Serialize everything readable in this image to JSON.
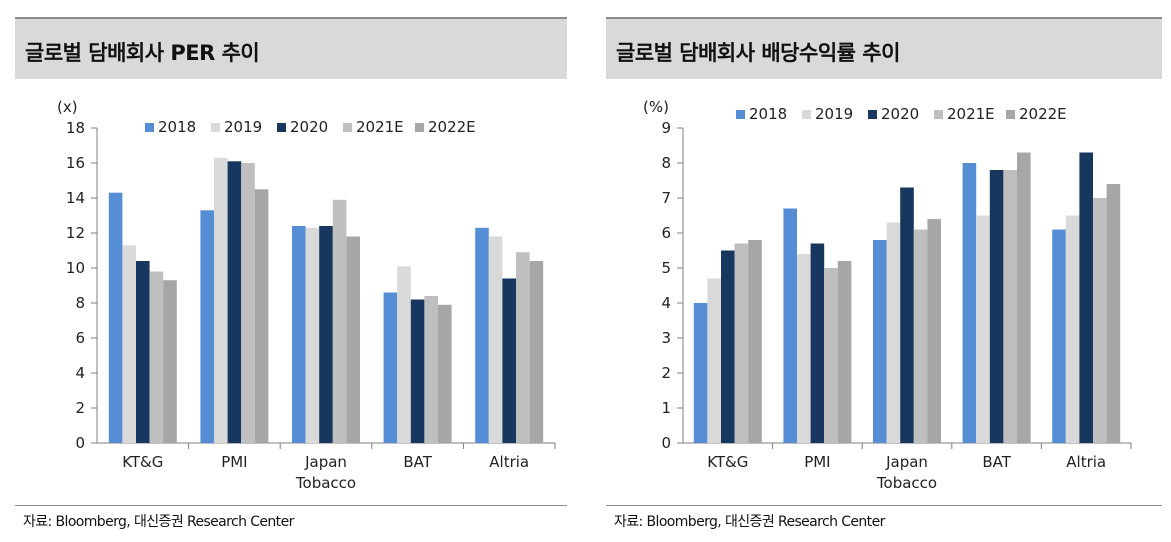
{
  "chart_data": [
    {
      "type": "bar",
      "title": "글로벌 담배회사 PER 추이",
      "unit_label": "(x)",
      "categories": [
        [
          "KT&G"
        ],
        [
          "PMI"
        ],
        [
          "Japan",
          "Tobacco"
        ],
        [
          "BAT"
        ],
        [
          "Altria"
        ]
      ],
      "series": [
        {
          "name": "2018",
          "color": "#558ed5",
          "values": [
            14.3,
            13.3,
            12.4,
            8.6,
            12.3
          ]
        },
        {
          "name": "2019",
          "color": "#d9d9d9",
          "values": [
            11.3,
            16.3,
            12.3,
            10.1,
            11.8
          ]
        },
        {
          "name": "2020",
          "color": "#17375e",
          "values": [
            10.4,
            16.1,
            12.4,
            8.2,
            9.4
          ]
        },
        {
          "name": "2021E",
          "color": "#bfbfbf",
          "values": [
            9.8,
            16.0,
            13.9,
            8.4,
            10.9
          ]
        },
        {
          "name": "2022E",
          "color": "#a6a6a6",
          "values": [
            9.3,
            14.5,
            11.8,
            7.9,
            10.4
          ]
        }
      ],
      "ylim": [
        0,
        18
      ],
      "yticks": [
        0,
        2,
        4,
        6,
        8,
        10,
        12,
        14,
        16,
        18
      ],
      "legend": "top",
      "grid": false,
      "source": "자료: Bloomberg, 대신증권 Research Center"
    },
    {
      "type": "bar",
      "title": "글로벌 담배회사 배당수익률 추이",
      "unit_label": "(%)",
      "categories": [
        [
          "KT&G"
        ],
        [
          "PMI"
        ],
        [
          "Japan",
          "Tobacco"
        ],
        [
          "BAT"
        ],
        [
          "Altria"
        ]
      ],
      "series": [
        {
          "name": "2018",
          "color": "#558ed5",
          "values": [
            4.0,
            6.7,
            5.8,
            8.0,
            6.1
          ]
        },
        {
          "name": "2019",
          "color": "#d9d9d9",
          "values": [
            4.7,
            5.4,
            6.3,
            6.5,
            6.5
          ]
        },
        {
          "name": "2020",
          "color": "#17375e",
          "values": [
            5.5,
            5.7,
            7.3,
            7.8,
            8.3
          ]
        },
        {
          "name": "2021E",
          "color": "#bfbfbf",
          "values": [
            5.7,
            5.0,
            6.1,
            7.8,
            7.0
          ]
        },
        {
          "name": "2022E",
          "color": "#a6a6a6",
          "values": [
            5.8,
            5.2,
            6.4,
            8.3,
            7.4
          ]
        }
      ],
      "ylim": [
        0,
        9
      ],
      "yticks": [
        0,
        1,
        2,
        3,
        4,
        5,
        6,
        7,
        8,
        9
      ],
      "legend": "top",
      "grid": false,
      "source": "자료: Bloomberg, 대신증권 Research Center"
    }
  ]
}
